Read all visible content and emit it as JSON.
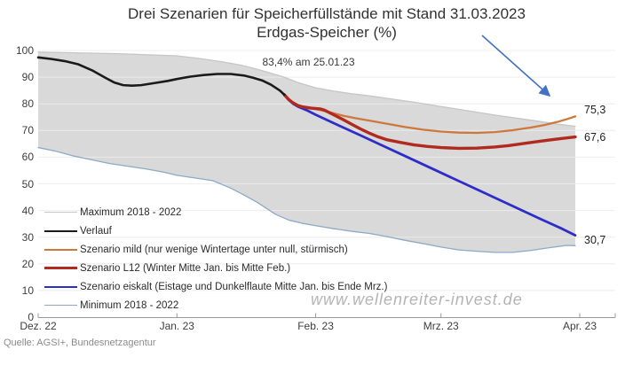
{
  "watermark": "www.wellenreiter-invest.de",
  "source": "Quelle: AGSI+, Bundesnetzagentur",
  "chart_data": {
    "type": "line",
    "title": "Drei Szenarien für Speicherfüllstände mit Stand 31.03.2023",
    "subtitle": "Erdgas-Speicher (%)",
    "annotation": "83,4% am 25.01.23",
    "ylim": [
      0,
      100
    ],
    "grid": "horizontal",
    "legend_position": "inside-bottom-left",
    "x_unit": "days since 2022-12-01",
    "x_ticks": [
      {
        "day": 0,
        "label": "Dez. 22"
      },
      {
        "day": 31,
        "label": "Jan. 23"
      },
      {
        "day": 62,
        "label": "Feb. 23"
      },
      {
        "day": 90,
        "label": "Mrz. 23"
      },
      {
        "day": 121,
        "label": "Apr. 23"
      }
    ],
    "y_ticks": [
      "0",
      "10",
      "20",
      "30",
      "40",
      "50",
      "60",
      "70",
      "80",
      "90",
      "100"
    ],
    "band": {
      "between": [
        "Maximum 2018 - 2022",
        "Minimum 2018 - 2022"
      ],
      "fill": "#d9d9d9"
    },
    "end_labels": [
      {
        "series": "Szenario mild",
        "text": "75,3"
      },
      {
        "series": "Szenario L12",
        "text": "67,6"
      },
      {
        "series": "Szenario eiskalt",
        "text": "30,7"
      }
    ],
    "arrow_color": "#4472c4",
    "series": [
      {
        "name": "Maximum 2018 - 2022",
        "color": "#c6c6c6",
        "width": 1.3,
        "points": [
          [
            0,
            99.4
          ],
          [
            6,
            99.2
          ],
          [
            12,
            99.0
          ],
          [
            18,
            98.8
          ],
          [
            24,
            98.4
          ],
          [
            31,
            98.0
          ],
          [
            36,
            97.0
          ],
          [
            41,
            95.8
          ],
          [
            45,
            94.6
          ],
          [
            48,
            93.4
          ],
          [
            51,
            92.0
          ],
          [
            55,
            90.0
          ],
          [
            58,
            88.0
          ],
          [
            62,
            86.0
          ],
          [
            66,
            84.8
          ],
          [
            70,
            83.8
          ],
          [
            74,
            83.0
          ],
          [
            79,
            81.8
          ],
          [
            84,
            80.6
          ],
          [
            90,
            79.0
          ],
          [
            96,
            77.4
          ],
          [
            102,
            75.8
          ],
          [
            107,
            74.6
          ],
          [
            112,
            73.4
          ],
          [
            116,
            72.4
          ],
          [
            120,
            71.6
          ]
        ]
      },
      {
        "name": "Verlauf",
        "color": "#1a1a1a",
        "width": 2.6,
        "points": [
          [
            0,
            97.4
          ],
          [
            3,
            96.8
          ],
          [
            6,
            96.0
          ],
          [
            9,
            94.8
          ],
          [
            12,
            92.6
          ],
          [
            15,
            89.8
          ],
          [
            17,
            88.0
          ],
          [
            19,
            87.0
          ],
          [
            21,
            86.8
          ],
          [
            23,
            87.0
          ],
          [
            26,
            87.8
          ],
          [
            29,
            88.6
          ],
          [
            31,
            89.3
          ],
          [
            34,
            90.2
          ],
          [
            37,
            90.8
          ],
          [
            40,
            91.2
          ],
          [
            43,
            91.2
          ],
          [
            46,
            90.6
          ],
          [
            48,
            89.8
          ],
          [
            50,
            88.8
          ],
          [
            52,
            87.2
          ],
          [
            54,
            85.0
          ],
          [
            55,
            83.4
          ]
        ]
      },
      {
        "name": "Szenario mild (nur wenige Wintertage unter null, stürmisch)",
        "color": "#cd783c",
        "width": 2.3,
        "points": [
          [
            55,
            83.4
          ],
          [
            56,
            81.6
          ],
          [
            57,
            80.3
          ],
          [
            58,
            79.4
          ],
          [
            59,
            78.9
          ],
          [
            61,
            78.3
          ],
          [
            63,
            77.7
          ],
          [
            65,
            76.9
          ],
          [
            68,
            75.6
          ],
          [
            71,
            74.6
          ],
          [
            74,
            73.7
          ],
          [
            78,
            72.5
          ],
          [
            82,
            71.3
          ],
          [
            86,
            70.3
          ],
          [
            90,
            69.6
          ],
          [
            94,
            69.2
          ],
          [
            98,
            69.1
          ],
          [
            102,
            69.4
          ],
          [
            106,
            70.1
          ],
          [
            110,
            71.1
          ],
          [
            113,
            72.0
          ],
          [
            116,
            73.2
          ],
          [
            118,
            74.2
          ],
          [
            120,
            75.3
          ]
        ]
      },
      {
        "name": "Szenario L12 (Winter Mitte Jan. bis Mitte Feb.)",
        "color": "#b02a20",
        "width": 3.4,
        "points": [
          [
            55,
            83.4
          ],
          [
            56,
            81.6
          ],
          [
            57,
            80.3
          ],
          [
            58,
            79.4
          ],
          [
            59,
            78.9
          ],
          [
            61,
            78.4
          ],
          [
            63,
            78.1
          ],
          [
            64,
            77.6
          ],
          [
            66,
            75.9
          ],
          [
            68,
            74.2
          ],
          [
            70,
            72.4
          ],
          [
            72,
            70.6
          ],
          [
            74,
            69.0
          ],
          [
            76,
            67.6
          ],
          [
            78,
            66.5
          ],
          [
            81,
            65.5
          ],
          [
            84,
            64.6
          ],
          [
            87,
            64.0
          ],
          [
            90,
            63.6
          ],
          [
            94,
            63.3
          ],
          [
            98,
            63.4
          ],
          [
            102,
            63.8
          ],
          [
            105,
            64.3
          ],
          [
            108,
            65.0
          ],
          [
            111,
            65.7
          ],
          [
            114,
            66.4
          ],
          [
            117,
            67.0
          ],
          [
            120,
            67.6
          ]
        ]
      },
      {
        "name": "Szenario eiskalt (Eistage und Dunkelflaute Mitte Jan. bis Ende Mrz.)",
        "color": "#2d2dc8",
        "width": 2.8,
        "points": [
          [
            55,
            83.4
          ],
          [
            56,
            81.4
          ],
          [
            57,
            80.0
          ],
          [
            58,
            79.0
          ],
          [
            60,
            77.6
          ],
          [
            62,
            75.9
          ],
          [
            67,
            72.0
          ],
          [
            72,
            68.2
          ],
          [
            77,
            64.3
          ],
          [
            82,
            60.4
          ],
          [
            87,
            56.5
          ],
          [
            92,
            52.6
          ],
          [
            97,
            48.7
          ],
          [
            102,
            44.8
          ],
          [
            107,
            40.9
          ],
          [
            112,
            37.0
          ],
          [
            117,
            33.2
          ],
          [
            120,
            30.7
          ]
        ]
      },
      {
        "name": "Minimum 2018 - 2022",
        "color": "#8caac8",
        "width": 1.3,
        "points": [
          [
            0,
            63.6
          ],
          [
            4,
            62.2
          ],
          [
            8,
            60.4
          ],
          [
            12,
            59.0
          ],
          [
            16,
            57.6
          ],
          [
            20,
            56.6
          ],
          [
            24,
            55.6
          ],
          [
            28,
            54.4
          ],
          [
            31,
            53.2
          ],
          [
            35,
            52.2
          ],
          [
            39,
            51.2
          ],
          [
            43,
            48.4
          ],
          [
            46,
            45.8
          ],
          [
            49,
            43.0
          ],
          [
            53,
            38.6
          ],
          [
            56,
            36.4
          ],
          [
            59,
            35.2
          ],
          [
            62,
            34.3
          ],
          [
            66,
            33.2
          ],
          [
            70,
            32.2
          ],
          [
            74,
            31.4
          ],
          [
            78,
            30.2
          ],
          [
            82,
            28.8
          ],
          [
            86,
            27.6
          ],
          [
            90,
            26.3
          ],
          [
            94,
            25.2
          ],
          [
            98,
            24.7
          ],
          [
            102,
            24.3
          ],
          [
            106,
            24.3
          ],
          [
            110,
            25.0
          ],
          [
            114,
            26.0
          ],
          [
            118,
            26.9
          ],
          [
            120,
            26.8
          ]
        ]
      }
    ]
  }
}
